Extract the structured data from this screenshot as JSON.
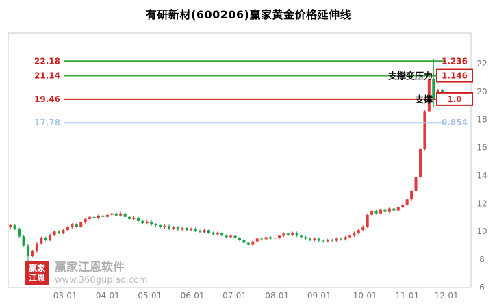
{
  "title": "有研新材(600206)赢家黄金价格延伸线",
  "watermark": {
    "logo_line1": "赢家",
    "logo_line2": "江恩",
    "name": "赢家江恩软件",
    "url": "www.360gupiao.com"
  },
  "colors": {
    "up": "#e03a3a",
    "down": "#18a24b",
    "level_green": "#35a339",
    "level_red": "#d01f1f",
    "level_blue": "#a9c6ea",
    "axis_text": "#7a7a7a",
    "annotation": "#000000",
    "frame": "#c9c9c9"
  },
  "y_axis": {
    "ticks": [
      22,
      20,
      18,
      16,
      14,
      12,
      10,
      8,
      6
    ]
  },
  "x_axis": {
    "labels": [
      "03-01",
      "04-01",
      "05-01",
      "06-01",
      "07-01",
      "08-01",
      "09-01",
      "10-01",
      "11-01",
      "12-01"
    ],
    "fractions": [
      0.123,
      0.215,
      0.306,
      0.398,
      0.489,
      0.581,
      0.672,
      0.771,
      0.862,
      0.947
    ]
  },
  "levels": [
    {
      "price": "22.18",
      "value": 22.18,
      "ratio": "1.236",
      "line_color": "level_green",
      "text_color": "level_red",
      "boxed": false,
      "annotation": ""
    },
    {
      "price": "21.14",
      "value": 21.14,
      "ratio": "1.146",
      "line_color": "level_green",
      "text_color": "level_red",
      "boxed": true,
      "annotation": "支撑变压力"
    },
    {
      "price": "19.46",
      "value": 19.46,
      "ratio": "1.0",
      "line_color": "level_red",
      "text_color": "level_red",
      "boxed": true,
      "annotation": "支撑"
    },
    {
      "price": "17.78",
      "value": 17.78,
      "ratio": "0.854",
      "line_color": "level_blue",
      "text_color": "level_blue",
      "boxed": false,
      "annotation": ""
    }
  ],
  "chart_data": {
    "type": "candlestick",
    "ylim": [
      6.0,
      24.2
    ],
    "slots": 105,
    "first_open": 10.3,
    "default_wick": 0.09,
    "closes": [
      10.45,
      10.2,
      9.65,
      9.0,
      8.25,
      8.6,
      9.15,
      9.55,
      9.4,
      9.75,
      10.0,
      9.9,
      10.1,
      10.3,
      10.5,
      10.35,
      10.65,
      10.9,
      11.05,
      10.95,
      11.15,
      11.05,
      11.2,
      11.3,
      11.15,
      11.3,
      11.05,
      10.9,
      11.0,
      10.75,
      10.6,
      10.7,
      10.5,
      10.45,
      10.3,
      10.4,
      10.2,
      10.3,
      10.15,
      10.25,
      10.1,
      10.2,
      10.05,
      9.95,
      10.1,
      9.9,
      9.8,
      9.9,
      9.7,
      9.6,
      9.7,
      9.55,
      9.4,
      9.2,
      9.05,
      9.3,
      9.5,
      9.45,
      9.6,
      9.5,
      9.55,
      9.7,
      9.85,
      9.75,
      9.9,
      9.7,
      9.6,
      9.5,
      9.4,
      9.5,
      9.35,
      9.3,
      9.4,
      9.35,
      9.5,
      9.45,
      9.6,
      9.7,
      9.9,
      10.1,
      10.35,
      11.2,
      11.45,
      11.3,
      11.55,
      11.4,
      11.65,
      11.5,
      11.75,
      11.9,
      12.3,
      12.9,
      13.9,
      15.9,
      18.6,
      20.9,
      19.5,
      20.1,
      19.8
    ],
    "overrides": {
      "4": {
        "low": 7.9
      },
      "95": {
        "high": 21.4
      },
      "96": {
        "high": 22.35,
        "low": 18.85
      }
    }
  }
}
